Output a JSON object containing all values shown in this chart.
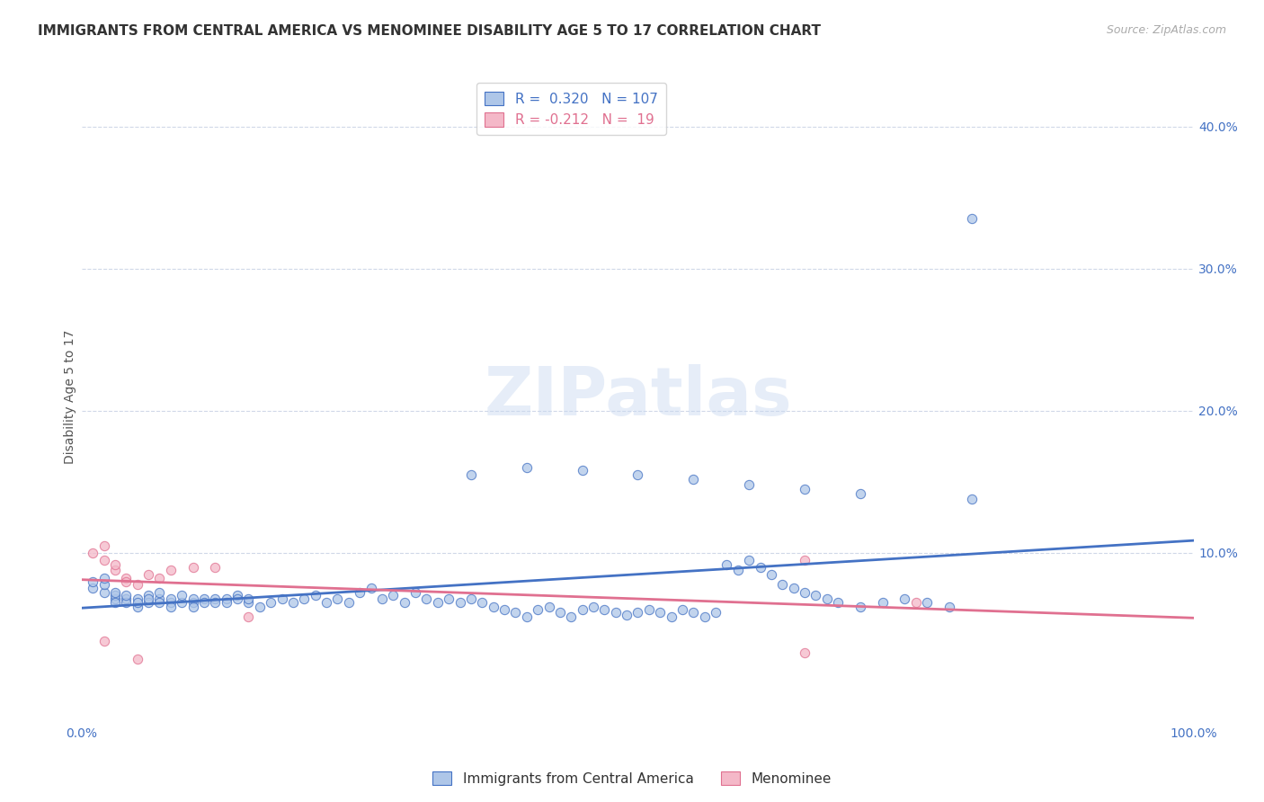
{
  "title": "IMMIGRANTS FROM CENTRAL AMERICA VS MENOMINEE DISABILITY AGE 5 TO 17 CORRELATION CHART",
  "source": "Source: ZipAtlas.com",
  "ylabel": "Disability Age 5 to 17",
  "xlim": [
    0,
    1.0
  ],
  "ylim": [
    -0.02,
    0.44
  ],
  "ytick_labels_right": [
    "40.0%",
    "30.0%",
    "20.0%",
    "10.0%"
  ],
  "ytick_positions_right": [
    0.4,
    0.3,
    0.2,
    0.1
  ],
  "blue_R": 0.32,
  "blue_N": 107,
  "pink_R": -0.212,
  "pink_N": 19,
  "blue_color": "#aec6e8",
  "pink_color": "#f4b8c8",
  "blue_line_color": "#4472C4",
  "pink_line_color": "#E07090",
  "legend_labels": [
    "Immigrants from Central America",
    "Menominee"
  ],
  "blue_scatter_x": [
    0.01,
    0.01,
    0.02,
    0.02,
    0.02,
    0.03,
    0.03,
    0.03,
    0.03,
    0.04,
    0.04,
    0.04,
    0.05,
    0.05,
    0.05,
    0.06,
    0.06,
    0.06,
    0.07,
    0.07,
    0.07,
    0.08,
    0.08,
    0.08,
    0.09,
    0.09,
    0.1,
    0.1,
    0.1,
    0.11,
    0.11,
    0.12,
    0.12,
    0.13,
    0.13,
    0.14,
    0.14,
    0.15,
    0.15,
    0.16,
    0.17,
    0.18,
    0.19,
    0.2,
    0.21,
    0.22,
    0.23,
    0.24,
    0.25,
    0.26,
    0.27,
    0.28,
    0.29,
    0.3,
    0.31,
    0.32,
    0.33,
    0.34,
    0.35,
    0.36,
    0.37,
    0.38,
    0.39,
    0.4,
    0.41,
    0.42,
    0.43,
    0.44,
    0.45,
    0.46,
    0.47,
    0.48,
    0.49,
    0.5,
    0.51,
    0.52,
    0.53,
    0.54,
    0.55,
    0.56,
    0.57,
    0.58,
    0.59,
    0.6,
    0.61,
    0.62,
    0.63,
    0.64,
    0.65,
    0.66,
    0.67,
    0.68,
    0.7,
    0.72,
    0.74,
    0.76,
    0.78,
    0.8,
    0.35,
    0.4,
    0.45,
    0.5,
    0.55,
    0.6,
    0.65,
    0.7,
    0.8
  ],
  "blue_scatter_y": [
    0.075,
    0.08,
    0.072,
    0.078,
    0.082,
    0.068,
    0.07,
    0.065,
    0.072,
    0.068,
    0.065,
    0.07,
    0.062,
    0.068,
    0.065,
    0.07,
    0.065,
    0.068,
    0.068,
    0.065,
    0.072,
    0.065,
    0.068,
    0.062,
    0.065,
    0.07,
    0.065,
    0.068,
    0.062,
    0.068,
    0.065,
    0.068,
    0.065,
    0.068,
    0.065,
    0.07,
    0.068,
    0.065,
    0.068,
    0.062,
    0.065,
    0.068,
    0.065,
    0.068,
    0.07,
    0.065,
    0.068,
    0.065,
    0.072,
    0.075,
    0.068,
    0.07,
    0.065,
    0.072,
    0.068,
    0.065,
    0.068,
    0.065,
    0.068,
    0.065,
    0.062,
    0.06,
    0.058,
    0.055,
    0.06,
    0.062,
    0.058,
    0.055,
    0.06,
    0.062,
    0.06,
    0.058,
    0.056,
    0.058,
    0.06,
    0.058,
    0.055,
    0.06,
    0.058,
    0.055,
    0.058,
    0.092,
    0.088,
    0.095,
    0.09,
    0.085,
    0.078,
    0.075,
    0.072,
    0.07,
    0.068,
    0.065,
    0.062,
    0.065,
    0.068,
    0.065,
    0.062,
    0.335,
    0.155,
    0.16,
    0.158,
    0.155,
    0.152,
    0.148,
    0.145,
    0.142,
    0.138
  ],
  "pink_scatter_x": [
    0.01,
    0.02,
    0.02,
    0.03,
    0.03,
    0.04,
    0.04,
    0.05,
    0.06,
    0.07,
    0.08,
    0.1,
    0.12,
    0.15,
    0.65,
    0.75,
    0.02,
    0.05,
    0.65
  ],
  "pink_scatter_y": [
    0.1,
    0.095,
    0.105,
    0.088,
    0.092,
    0.082,
    0.08,
    0.078,
    0.085,
    0.082,
    0.088,
    0.09,
    0.09,
    0.055,
    0.095,
    0.065,
    0.038,
    0.025,
    0.03
  ],
  "background_color": "#ffffff",
  "grid_color": "#d0d8e8",
  "title_fontsize": 11,
  "axis_label_fontsize": 10,
  "tick_fontsize": 10
}
